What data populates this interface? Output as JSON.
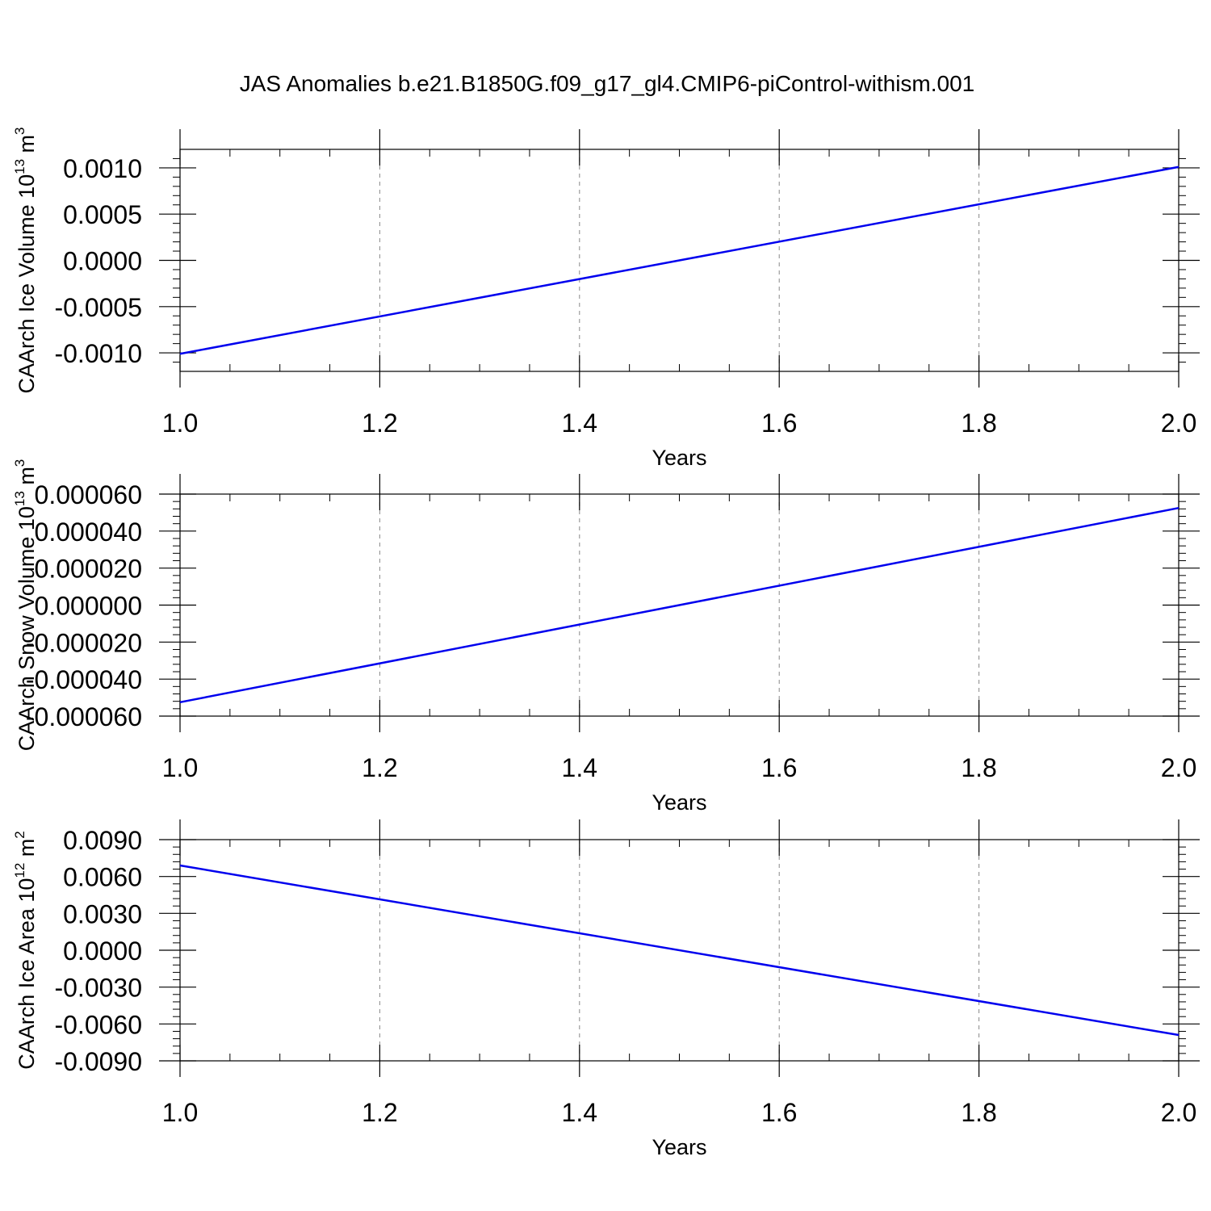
{
  "title": "JAS Anomalies b.e21.B1850G.f09_g17_gl4.CMIP6-piControl-withism.001",
  "colors": {
    "line": "#0000ee",
    "axes": "#000000",
    "grid": "#888888"
  },
  "chart_data": [
    {
      "type": "line",
      "xlabel": "Years",
      "ylabel": {
        "text": "CAArch Ice Volume 10",
        "exp": "13",
        "unit": " m",
        "unit_exp": "3"
      },
      "xlim": [
        1.0,
        2.0
      ],
      "ylim": [
        -0.0012,
        0.0012
      ],
      "xticks": [
        "1.0",
        "1.2",
        "1.4",
        "1.6",
        "1.8",
        "2.0"
      ],
      "yticks": [
        "-0.0010",
        "-0.0005",
        "0.0000",
        "0.0005",
        "0.0010"
      ],
      "grid": "x-dashed",
      "series": [
        {
          "x": [
            1.0,
            2.0
          ],
          "y": [
            -0.00101,
            0.00101
          ]
        }
      ]
    },
    {
      "type": "line",
      "xlabel": "Years",
      "ylabel": {
        "text": "CAArch Snow Volume 10",
        "exp": "13",
        "unit": " m",
        "unit_exp": "3"
      },
      "xlim": [
        1.0,
        2.0
      ],
      "ylim": [
        -6e-05,
        6e-05
      ],
      "xticks": [
        "1.0",
        "1.2",
        "1.4",
        "1.6",
        "1.8",
        "2.0"
      ],
      "yticks": [
        "-0.000060",
        "-0.000040",
        "-0.000020",
        "0.000000",
        "0.000020",
        "0.000040",
        "0.000060"
      ],
      "grid": "x-dashed",
      "series": [
        {
          "x": [
            1.0,
            2.0
          ],
          "y": [
            -5.25e-05,
            5.25e-05
          ]
        }
      ]
    },
    {
      "type": "line",
      "xlabel": "Years",
      "ylabel": {
        "text": "CAArch Ice Area 10",
        "exp": "12",
        "unit": " m",
        "unit_exp": "2"
      },
      "xlim": [
        1.0,
        2.0
      ],
      "ylim": [
        -0.009,
        0.009
      ],
      "xticks": [
        "1.0",
        "1.2",
        "1.4",
        "1.6",
        "1.8",
        "2.0"
      ],
      "yticks": [
        "-0.0090",
        "-0.0060",
        "-0.0030",
        "0.0000",
        "0.0030",
        "0.0060",
        "0.0090"
      ],
      "grid": "x-dashed",
      "series": [
        {
          "x": [
            1.0,
            2.0
          ],
          "y": [
            0.0069,
            -0.0069
          ]
        }
      ]
    }
  ]
}
